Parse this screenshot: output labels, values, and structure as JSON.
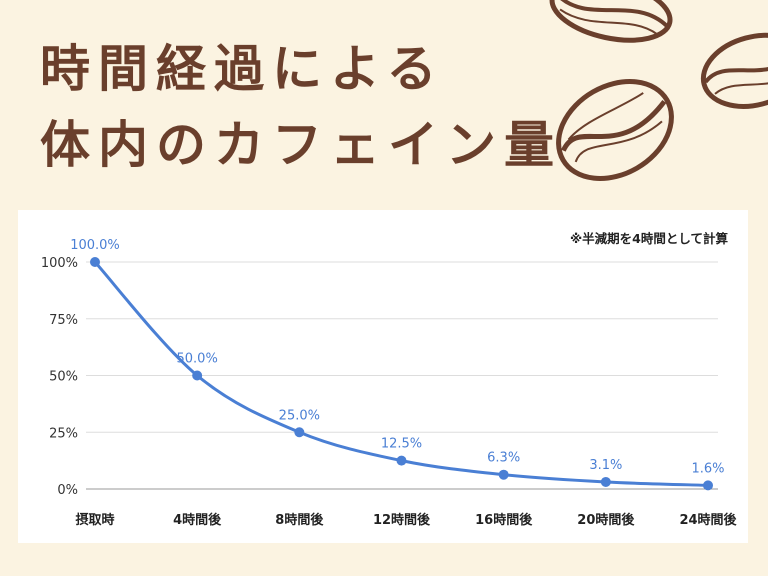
{
  "header": {
    "title_line1": "時間経過による",
    "title_line2": "体内のカフェイン量"
  },
  "note": "※半減期を4時間として計算",
  "colors": {
    "background": "#fbf3e1",
    "title": "#6a3f2c",
    "line": "#4a7fd4",
    "data_label": "#4a7fd4",
    "bean": "#6a3f2c"
  },
  "decorations": [
    "coffee-bean-icon",
    "coffee-bean-icon",
    "coffee-bean-icon"
  ],
  "chart_data": {
    "type": "line",
    "categories": [
      "摂取時",
      "4時間後",
      "8時間後",
      "12時間後",
      "16時間後",
      "20時間後",
      "24時間後"
    ],
    "series": [
      {
        "values": [
          100.0,
          50.0,
          25.0,
          12.5,
          6.3,
          3.1,
          1.6
        ],
        "labels": [
          "100.0%",
          "50.0%",
          "25.0%",
          "12.5%",
          "6.3%",
          "3.1%",
          "1.6%"
        ]
      }
    ],
    "yticks": [
      "0%",
      "25%",
      "50%",
      "75%",
      "100%"
    ],
    "ylim": [
      0,
      100
    ],
    "smooth": true,
    "grid": true,
    "legend": "none",
    "title": "",
    "xlabel": "",
    "ylabel": ""
  }
}
